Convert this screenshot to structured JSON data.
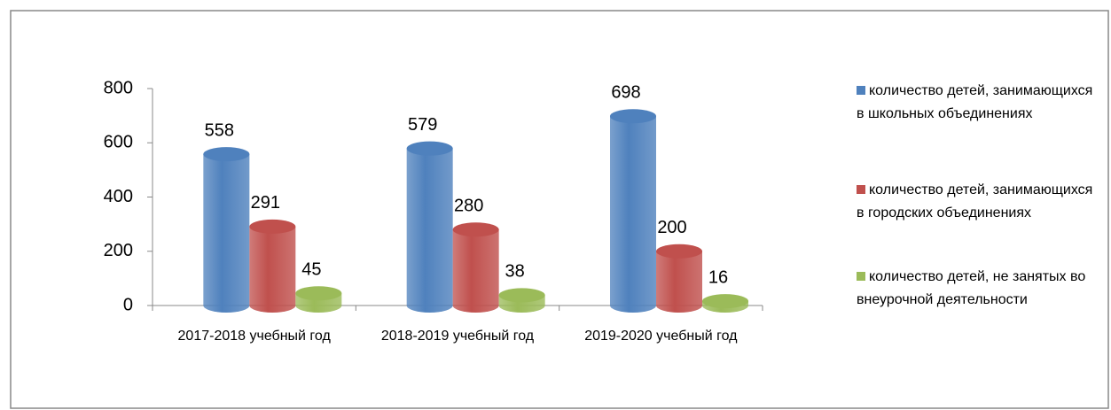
{
  "chart_data": {
    "type": "bar",
    "categories": [
      "2017-2018 учебный год",
      "2018-2019 учебный год",
      "2019-2020 учебный год"
    ],
    "series": [
      {
        "name": "количество детей, занимающихся в школьных объединениях",
        "color": "#4f81bd",
        "values": [
          558,
          579,
          698
        ]
      },
      {
        "name": "количество детей, занимающихся в городских объединениях",
        "color": "#c0504d",
        "values": [
          291,
          280,
          200
        ]
      },
      {
        "name": "количество детей, не занятых во внеурочной деятельности",
        "color": "#9bbb59",
        "values": [
          45,
          38,
          16
        ]
      }
    ],
    "ylim": [
      0,
      800
    ],
    "yticks": [
      0,
      200,
      400,
      600,
      800
    ],
    "legend": "right"
  }
}
